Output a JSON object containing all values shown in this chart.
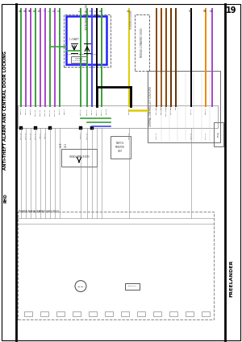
{
  "title": "ANTI-THEFT ALARM AND CENTRAL DOOR LOCKING",
  "subtitle": "RHD",
  "page_number": "19",
  "vehicle_name": "FREELANDER",
  "bg_color": "#ffffff",
  "border_color": "#000000",
  "green": "#3a9e3a",
  "purple": "#aa44cc",
  "blue_wire": "#4444ee",
  "black": "#000000",
  "yellow": "#ddcc00",
  "brown": "#884400",
  "orange": "#ee8800",
  "dark_brown": "#663300",
  "blue_box": "#2222ff",
  "gray": "#888888",
  "light_gray": "#aaaaaa",
  "dark_gray": "#555555"
}
